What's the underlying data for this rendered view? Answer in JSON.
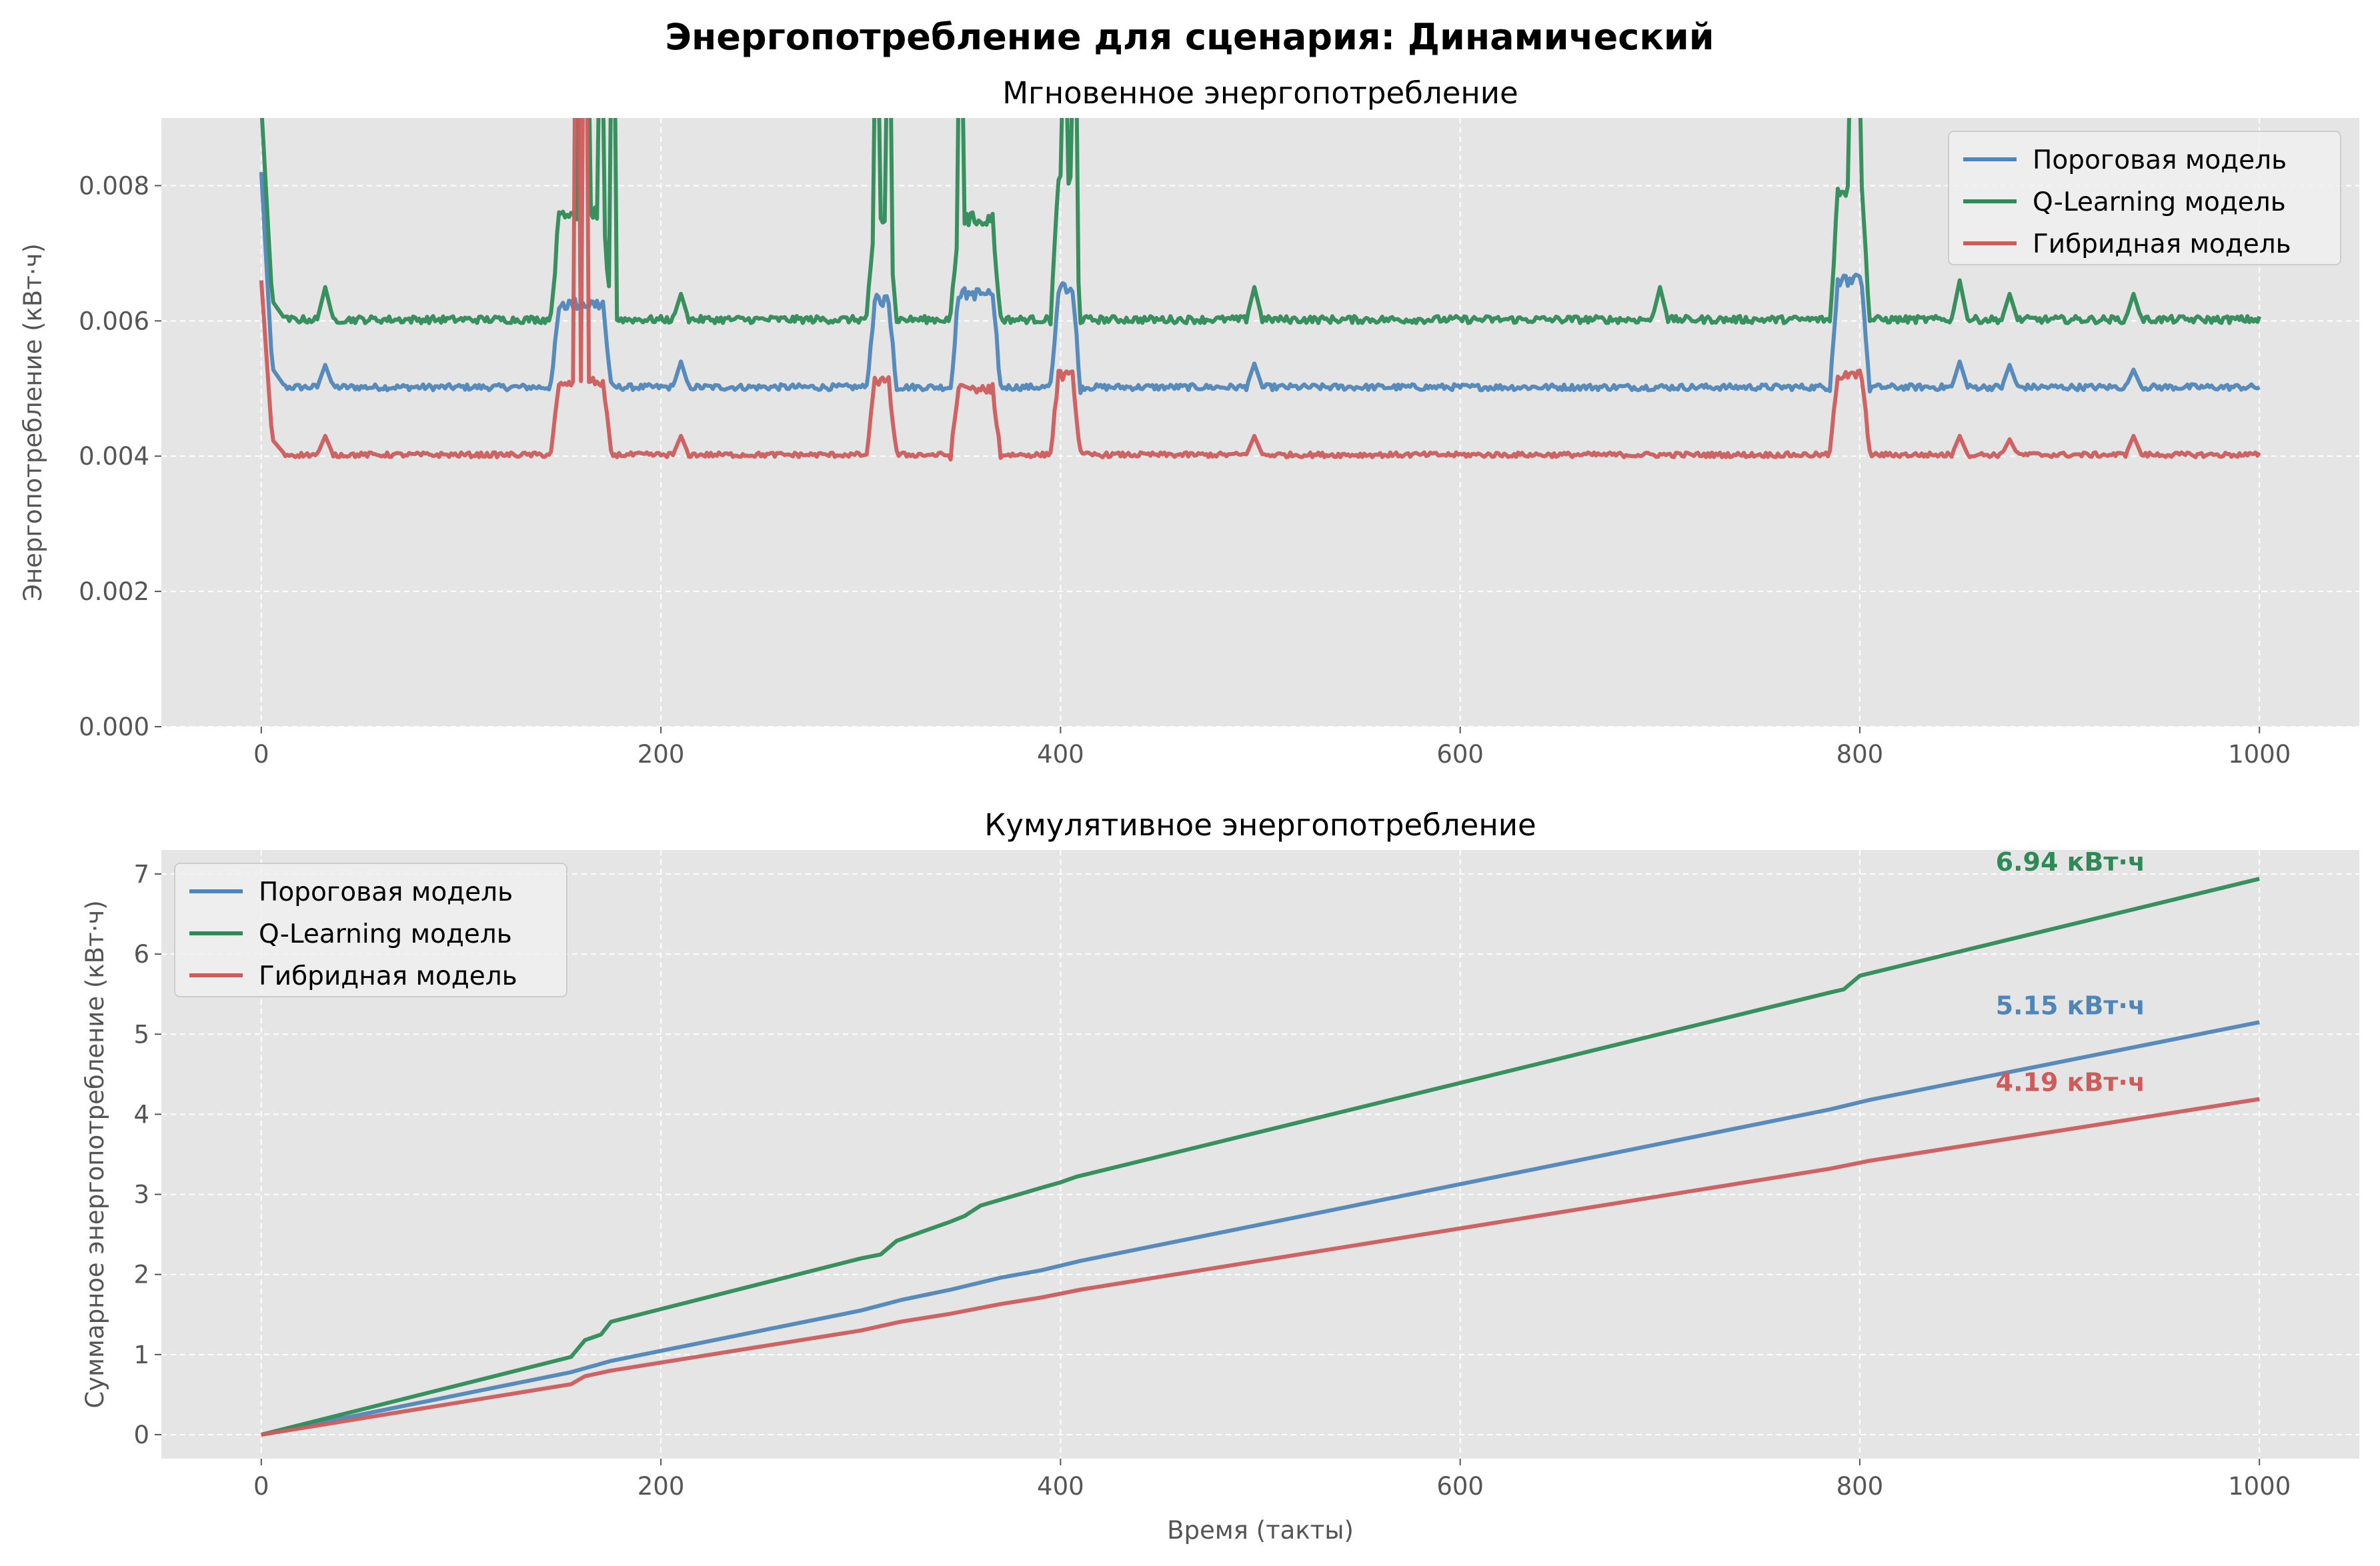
{
  "figure": {
    "suptitle": "Энергопотребление для сценария: Динамический"
  },
  "colors": {
    "threshold": "#4f86b9",
    "qlearning": "#2e8b57",
    "hybrid": "#cd5c5c",
    "axes_bg": "#e5e5e5",
    "grid": "#ffffff"
  },
  "chart_data": [
    {
      "type": "line",
      "title": "Мгновенное энергопотребление",
      "xlabel": "",
      "ylabel": "Энергопотребление (кВт·ч)",
      "xlim": [
        -50,
        1050
      ],
      "ylim": [
        0,
        0.009
      ],
      "xticks": [
        0,
        200,
        400,
        600,
        800,
        1000
      ],
      "xtick_labels": [
        "0",
        "200",
        "400",
        "600",
        "800",
        "1000"
      ],
      "yticks": [
        0,
        0.002,
        0.004,
        0.006,
        0.008
      ],
      "ytick_labels": [
        "0.000",
        "0.002",
        "0.004",
        "0.006",
        "0.008"
      ],
      "grid": true,
      "legend_position": "top-right",
      "series": [
        {
          "name": "Пороговая модель",
          "color_key": "threshold",
          "baseline": 0.00502,
          "start_value": 0.0082,
          "segments": [
            {
              "start": 145,
              "end": 175,
              "value": 0.00625
            },
            {
              "start": 303,
              "end": 318,
              "value": 0.0063
            },
            {
              "start": 345,
              "end": 370,
              "value": 0.0064
            },
            {
              "start": 395,
              "end": 410,
              "value": 0.0065
            },
            {
              "start": 785,
              "end": 805,
              "value": 0.0066
            }
          ],
          "bumps": [
            [
              32,
              0.00535
            ],
            [
              210,
              0.0054
            ],
            [
              497,
              0.00537
            ],
            [
              850,
              0.0054
            ],
            [
              875,
              0.00535
            ],
            [
              937,
              0.00528
            ]
          ]
        },
        {
          "name": "Q-Learning модель",
          "color_key": "qlearning",
          "baseline": 0.00602,
          "start_value": 0.0092,
          "segments": [
            {
              "start": 145,
              "end": 175,
              "value": 0.0076
            },
            {
              "start": 303,
              "end": 318,
              "value": 0.0075
            },
            {
              "start": 345,
              "end": 370,
              "value": 0.0075
            },
            {
              "start": 395,
              "end": 410,
              "value": 0.0081
            },
            {
              "start": 785,
              "end": 805,
              "value": 0.0079
            }
          ],
          "spikes": [
            [
              160,
              0.0095
            ],
            [
              163,
              0.0095
            ],
            [
              170,
              0.0095
            ],
            [
              176,
              0.0095
            ],
            [
              308,
              0.0095
            ],
            [
              314,
              0.0095
            ],
            [
              350,
              0.0095
            ],
            [
              402,
              0.0095
            ],
            [
              407,
              0.0095
            ],
            [
              796,
              0.0095
            ],
            [
              799,
              0.0095
            ]
          ],
          "bumps": [
            [
              32,
              0.0065
            ],
            [
              210,
              0.0064
            ],
            [
              497,
              0.0065
            ],
            [
              700,
              0.0065
            ],
            [
              850,
              0.0066
            ],
            [
              875,
              0.0064
            ],
            [
              937,
              0.0064
            ]
          ]
        },
        {
          "name": "Гибридная модель",
          "color_key": "hybrid",
          "baseline": 0.00402,
          "start_value": 0.0066,
          "segments": [
            {
              "start": 145,
              "end": 175,
              "value": 0.0051
            },
            {
              "start": 303,
              "end": 318,
              "value": 0.0051
            },
            {
              "start": 345,
              "end": 370,
              "value": 0.005
            },
            {
              "start": 395,
              "end": 410,
              "value": 0.0052
            },
            {
              "start": 785,
              "end": 805,
              "value": 0.0052
            }
          ],
          "spikes": [
            [
              158,
              0.0095
            ],
            [
              162,
              0.0095
            ]
          ],
          "bumps": [
            [
              32,
              0.0043
            ],
            [
              210,
              0.0043
            ],
            [
              497,
              0.0043
            ],
            [
              850,
              0.0043
            ],
            [
              875,
              0.00425
            ],
            [
              937,
              0.0043
            ]
          ]
        }
      ]
    },
    {
      "type": "line",
      "title": "Кумулятивное энергопотребление",
      "xlabel": "Время (такты)",
      "ylabel": "Суммарное энергопотребление (кВт·ч)",
      "xlim": [
        -50,
        1050
      ],
      "ylim": [
        -0.3,
        7.3
      ],
      "xticks": [
        0,
        200,
        400,
        600,
        800,
        1000
      ],
      "xtick_labels": [
        "0",
        "200",
        "400",
        "600",
        "800",
        "1000"
      ],
      "yticks": [
        0,
        1,
        2,
        3,
        4,
        5,
        6,
        7
      ],
      "ytick_labels": [
        "0",
        "1",
        "2",
        "3",
        "4",
        "5",
        "6",
        "7"
      ],
      "grid": true,
      "legend_position": "top-left",
      "series": [
        {
          "name": "Пороговая модель",
          "color_key": "threshold",
          "x": [
            0,
            155,
            175,
            300,
            320,
            345,
            370,
            390,
            410,
            785,
            805,
            1000
          ],
          "y": [
            0,
            0.78,
            0.92,
            1.55,
            1.68,
            1.81,
            1.96,
            2.05,
            2.17,
            4.06,
            4.18,
            5.15
          ]
        },
        {
          "name": "Q-Learning модель",
          "color_key": "qlearning",
          "x": [
            0,
            155,
            162,
            170,
            175,
            300,
            310,
            318,
            345,
            352,
            360,
            390,
            400,
            408,
            785,
            792,
            800,
            1000
          ],
          "y": [
            0,
            0.97,
            1.18,
            1.25,
            1.41,
            2.2,
            2.25,
            2.42,
            2.66,
            2.73,
            2.86,
            3.08,
            3.15,
            3.22,
            5.52,
            5.56,
            5.73,
            6.94
          ]
        },
        {
          "name": "Гибридная модель",
          "color_key": "hybrid",
          "x": [
            0,
            155,
            162,
            175,
            300,
            320,
            345,
            370,
            390,
            410,
            785,
            805,
            1000
          ],
          "y": [
            0,
            0.63,
            0.73,
            0.8,
            1.3,
            1.41,
            1.51,
            1.63,
            1.71,
            1.81,
            3.32,
            3.42,
            4.19
          ]
        }
      ],
      "annotations": [
        {
          "text": "6.94 кВт·ч",
          "color_key": "qlearning",
          "x": 868,
          "y": 6.94
        },
        {
          "text": "5.15 кВт·ч",
          "color_key": "threshold",
          "x": 868,
          "y": 5.15
        },
        {
          "text": "4.19 кВт·ч",
          "color_key": "hybrid",
          "x": 868,
          "y": 4.19
        }
      ]
    }
  ]
}
